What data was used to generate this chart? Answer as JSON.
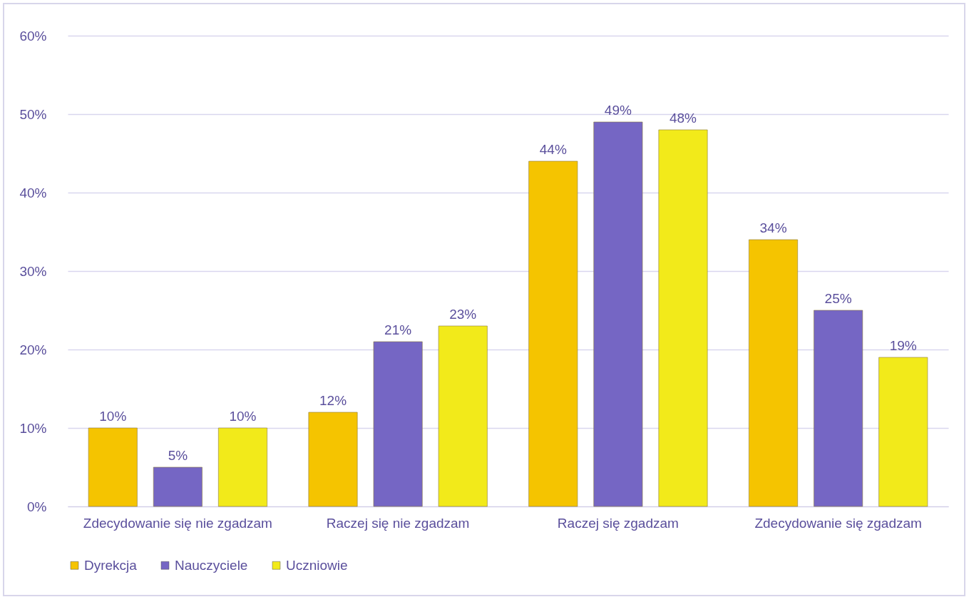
{
  "chart_data": {
    "type": "bar",
    "categories": [
      "Zdecydowanie się nie zgadzam",
      "Raczej się nie zgadzam",
      "Raczej się zgadzam",
      "Zdecydowanie się zgadzam"
    ],
    "series": [
      {
        "name": "Dyrekcja",
        "color": "#f5c400",
        "values": [
          10,
          12,
          44,
          34
        ],
        "value_labels": [
          "10%",
          "12%",
          "44%",
          "34%"
        ]
      },
      {
        "name": "Nauczyciele",
        "color": "#7566c4",
        "values": [
          5,
          21,
          49,
          25
        ],
        "value_labels": [
          "5%",
          "21%",
          "49%",
          "25%"
        ]
      },
      {
        "name": "Uczniowie",
        "color": "#f2ea1a",
        "values": [
          10,
          23,
          48,
          19
        ],
        "value_labels": [
          "10%",
          "23%",
          "48%",
          "19%"
        ]
      }
    ],
    "ylim": [
      0,
      60
    ],
    "yticks": [
      {
        "value": 0,
        "label": "0%"
      },
      {
        "value": 10,
        "label": "10%"
      },
      {
        "value": 20,
        "label": "20%"
      },
      {
        "value": 30,
        "label": "30%"
      },
      {
        "value": 40,
        "label": "40%"
      },
      {
        "value": 50,
        "label": "50%"
      },
      {
        "value": 60,
        "label": "60%"
      }
    ],
    "grid": "y",
    "legend": "bottom"
  }
}
